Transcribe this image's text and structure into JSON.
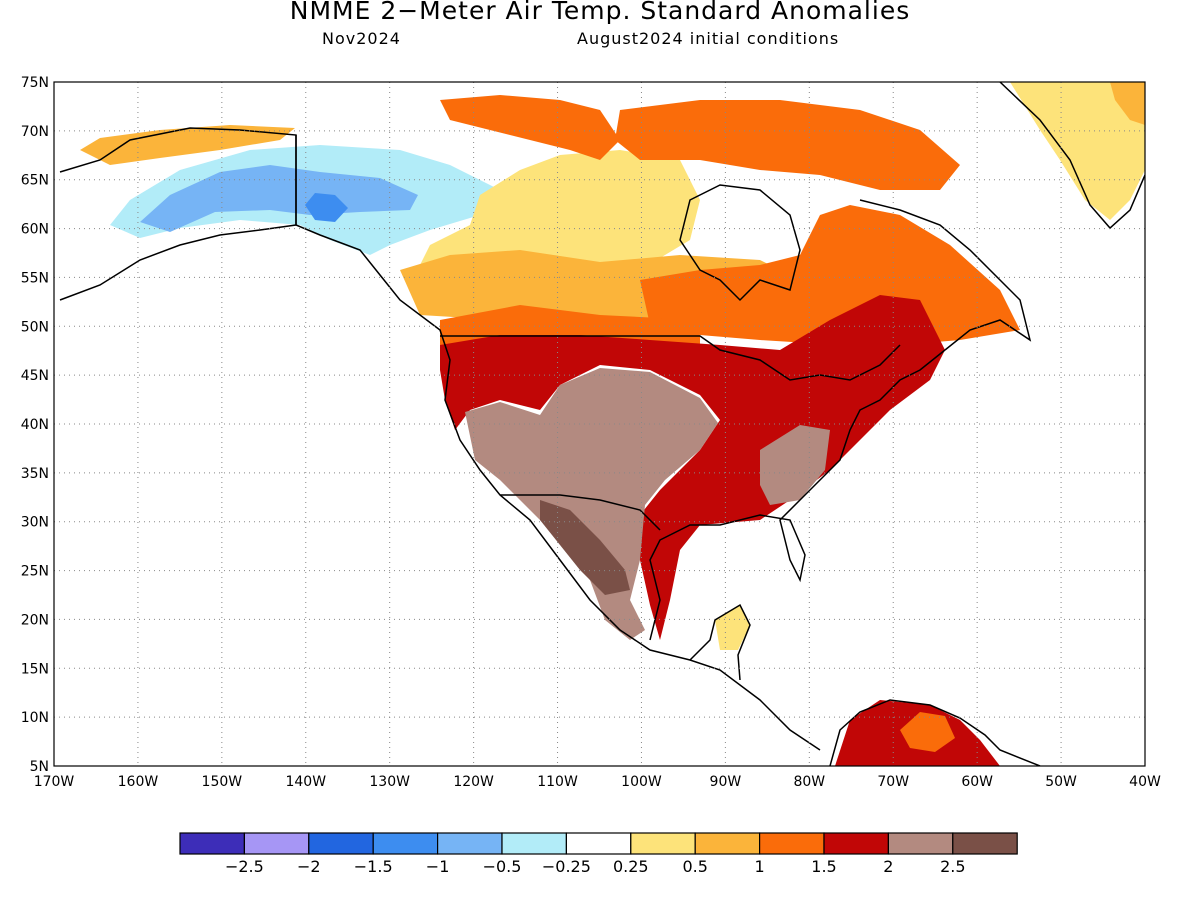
{
  "title": "NMME 2−Meter Air Temp. Standard Anomalies",
  "subtitle_left": "Nov2024",
  "subtitle_right": "August2024 initial conditions",
  "map": {
    "lon_range": [
      -170,
      -40
    ],
    "lat_range": [
      5,
      75
    ],
    "lat_ticks": [
      "75N",
      "70N",
      "65N",
      "60N",
      "55N",
      "50N",
      "45N",
      "40N",
      "35N",
      "30N",
      "25N",
      "20N",
      "15N",
      "10N",
      "5N"
    ],
    "lon_ticks": [
      "170W",
      "160W",
      "150W",
      "140W",
      "130W",
      "120W",
      "110W",
      "100W",
      "90W",
      "80W",
      "70W",
      "60W",
      "50W",
      "40W"
    ],
    "grid": "dotted"
  },
  "colorbar": {
    "colors": [
      "#3d2db8",
      "#a696f5",
      "#2266e0",
      "#3d8df0",
      "#76b4f5",
      "#b2ecf8",
      "#ffffff",
      "#fde37a",
      "#fbb43a",
      "#fa6c0a",
      "#c10606",
      "#b38a80",
      "#7a5047"
    ],
    "labels": [
      "−2.5",
      "−2",
      "−1.5",
      "−1",
      "−0.5",
      "−0.25",
      "0.25",
      "0.5",
      "1",
      "1.5",
      "2",
      "2.5"
    ]
  }
}
